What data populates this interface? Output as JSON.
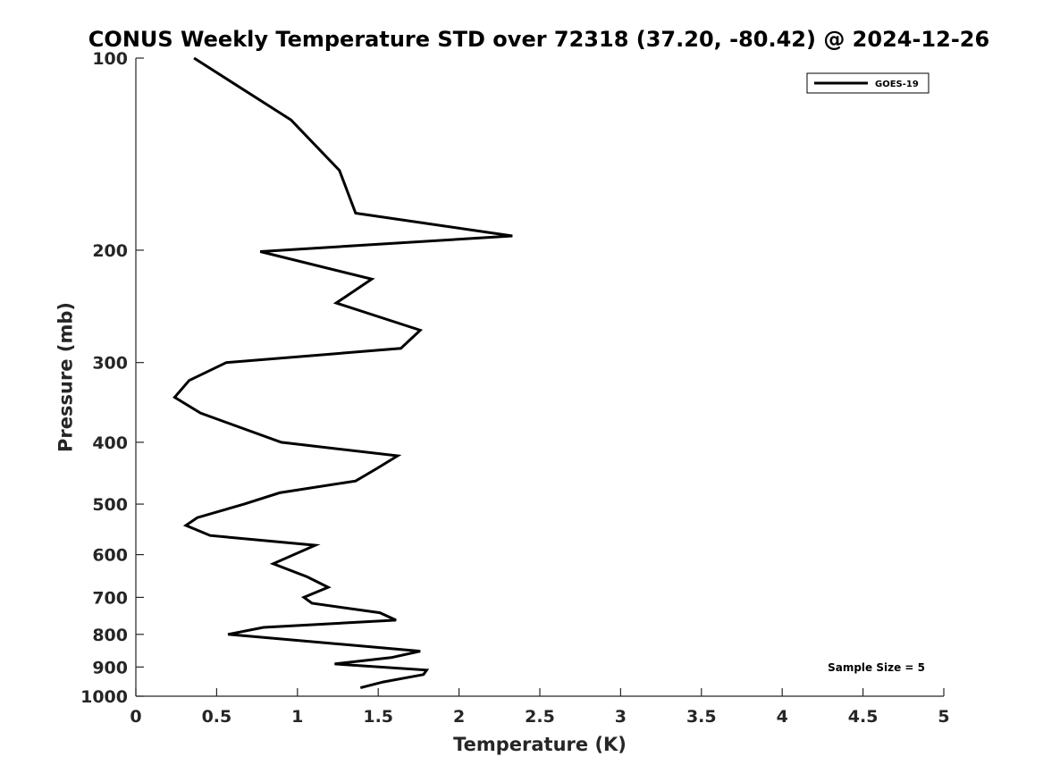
{
  "chart_data": {
    "type": "line",
    "title": "CONUS Weekly Temperature STD over 72318 (37.20, -80.42) @ 2024-12-26",
    "xlabel": "Temperature (K)",
    "ylabel": "Pressure (mb)",
    "xlim": [
      0,
      5
    ],
    "ylim": [
      1000,
      100
    ],
    "yscale": "log",
    "x_ticks": [
      0,
      0.5,
      1,
      1.5,
      2,
      2.5,
      3,
      3.5,
      4,
      4.5,
      5
    ],
    "x_tick_labels": [
      "0",
      "0.5",
      "1",
      "1.5",
      "2",
      "2.5",
      "3",
      "3.5",
      "4",
      "4.5",
      "5"
    ],
    "y_ticks": [
      100,
      200,
      300,
      400,
      500,
      600,
      700,
      800,
      900,
      1000
    ],
    "y_tick_labels": [
      "100",
      "200",
      "300",
      "400",
      "500",
      "600",
      "700",
      "800",
      "900",
      "1000"
    ],
    "grid": false,
    "legend_position": "top-right",
    "series": [
      {
        "name": "GOES-19",
        "color": "#000000",
        "points": [
          {
            "t": 0.36,
            "p": 100
          },
          {
            "t": 0.96,
            "p": 125
          },
          {
            "t": 1.26,
            "p": 150
          },
          {
            "t": 1.36,
            "p": 175
          },
          {
            "t": 2.33,
            "p": 190
          },
          {
            "t": 0.77,
            "p": 201
          },
          {
            "t": 1.46,
            "p": 222
          },
          {
            "t": 1.24,
            "p": 242
          },
          {
            "t": 1.76,
            "p": 267
          },
          {
            "t": 1.64,
            "p": 285
          },
          {
            "t": 0.56,
            "p": 300
          },
          {
            "t": 0.33,
            "p": 320
          },
          {
            "t": 0.24,
            "p": 340
          },
          {
            "t": 0.4,
            "p": 360
          },
          {
            "t": 0.9,
            "p": 400
          },
          {
            "t": 1.62,
            "p": 420
          },
          {
            "t": 1.49,
            "p": 440
          },
          {
            "t": 1.36,
            "p": 460
          },
          {
            "t": 0.89,
            "p": 480
          },
          {
            "t": 0.67,
            "p": 500
          },
          {
            "t": 0.38,
            "p": 525
          },
          {
            "t": 0.31,
            "p": 540
          },
          {
            "t": 0.46,
            "p": 560
          },
          {
            "t": 1.11,
            "p": 580
          },
          {
            "t": 0.85,
            "p": 620
          },
          {
            "t": 1.06,
            "p": 650
          },
          {
            "t": 1.19,
            "p": 675
          },
          {
            "t": 1.04,
            "p": 700
          },
          {
            "t": 1.09,
            "p": 715
          },
          {
            "t": 1.51,
            "p": 740
          },
          {
            "t": 1.61,
            "p": 760
          },
          {
            "t": 0.79,
            "p": 780
          },
          {
            "t": 0.57,
            "p": 800
          },
          {
            "t": 1.76,
            "p": 850
          },
          {
            "t": 1.58,
            "p": 870
          },
          {
            "t": 1.23,
            "p": 890
          },
          {
            "t": 1.8,
            "p": 910
          },
          {
            "t": 1.78,
            "p": 925
          },
          {
            "t": 1.53,
            "p": 950
          },
          {
            "t": 1.39,
            "p": 970
          }
        ]
      }
    ],
    "annotation": "Sample Size = 5"
  }
}
